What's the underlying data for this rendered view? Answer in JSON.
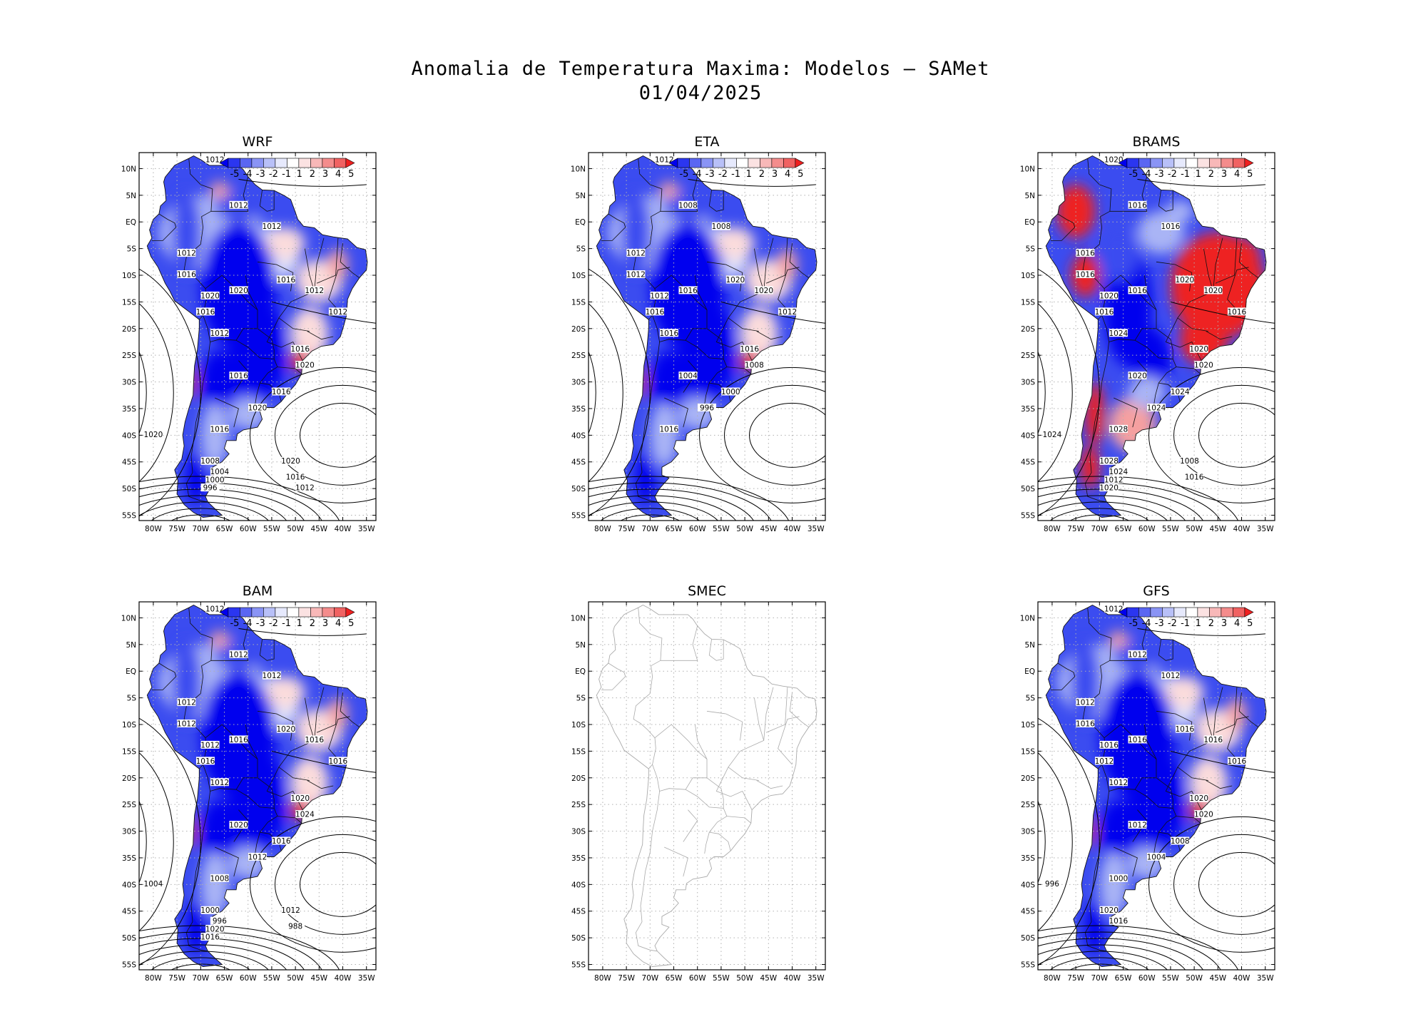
{
  "title": {
    "line1": "Anomalia de Temperatura Maxima: Modelos – SAMet",
    "line2": "01/04/2025"
  },
  "colors": {
    "strong_blue": "#0000ee",
    "blue": "#3b4cf0",
    "light_blue": "#a9b4f5",
    "pale_blue": "#dde2fb",
    "pale_red": "#fbdcdc",
    "light_red": "#f5a0a0",
    "red": "#ee2020",
    "grid": "#b0b0b0",
    "land_empty": "#f4f4f4"
  },
  "chart_data": {
    "type": "heatmap",
    "variable": "Anomalia de Temperatura Maxima",
    "date": "01/04/2025",
    "x_ticks": [
      "80W",
      "75W",
      "70W",
      "65W",
      "60W",
      "55W",
      "50W",
      "45W",
      "40W",
      "35W"
    ],
    "y_ticks": [
      "10N",
      "5N",
      "EQ",
      "5S",
      "10S",
      "15S",
      "20S",
      "25S",
      "30S",
      "35S",
      "40S",
      "45S",
      "50S",
      "55S"
    ],
    "xlim": [
      -83,
      -33
    ],
    "ylim": [
      -56,
      13
    ],
    "colorbar": {
      "labels": [
        "-5",
        "-4",
        "-3",
        "-2",
        "-1",
        "1",
        "2",
        "3",
        "4",
        "5"
      ],
      "colors": [
        "#0000ee",
        "#2b36f0",
        "#5a66f2",
        "#8a94f5",
        "#b8c0f8",
        "#e6e9fc",
        "#ffffff",
        "#fbe2e2",
        "#f8b8b8",
        "#f48c8c",
        "#f06262",
        "#ee2020"
      ]
    },
    "panels": [
      {
        "name": "WRF",
        "has_data": true,
        "tone": "cold",
        "contour_labels": [
          "1012",
          "1012",
          "1012",
          "1012",
          "1016",
          "1020",
          "1020",
          "1016",
          "1012",
          "1016",
          "1012",
          "1012",
          "1016",
          "1020",
          "1016",
          "1016",
          "1020",
          "1016",
          "1020",
          "1008",
          "1004",
          "1000",
          "996",
          "1020",
          "1016",
          "1012"
        ]
      },
      {
        "name": "ETA",
        "has_data": true,
        "tone": "cold",
        "contour_labels": [
          "1012",
          "1008",
          "1008",
          "1012",
          "1012",
          "1012",
          "1016",
          "1016",
          "1016",
          "1020",
          "1020",
          "1012",
          "1016",
          "1008",
          "1004",
          "1000",
          "996",
          "1016"
        ]
      },
      {
        "name": "BRAMS",
        "has_data": true,
        "tone": "warm",
        "contour_labels": [
          "1020",
          "1016",
          "1016",
          "1016",
          "1016",
          "1020",
          "1016",
          "1016",
          "1024",
          "1020",
          "1020",
          "1016",
          "1020",
          "1020",
          "1020",
          "1024",
          "1024",
          "1028",
          "1024",
          "1028",
          "1024",
          "1012",
          "1020",
          "1008",
          "1016"
        ]
      },
      {
        "name": "BAM",
        "has_data": true,
        "tone": "cold",
        "contour_labels": [
          "1012",
          "1012",
          "1012",
          "1012",
          "1012",
          "1012",
          "1016",
          "1016",
          "1012",
          "1020",
          "1016",
          "1016",
          "1020",
          "1024",
          "1020",
          "1016",
          "1012",
          "1008",
          "1004",
          "1000",
          "996",
          "1020",
          "1016",
          "1012",
          "988"
        ]
      },
      {
        "name": "SMEC",
        "has_data": false,
        "tone": "none",
        "contour_labels": []
      },
      {
        "name": "GFS",
        "has_data": true,
        "tone": "cold",
        "contour_labels": [
          "1012",
          "1012",
          "1012",
          "1012",
          "1016",
          "1016",
          "1016",
          "1012",
          "1012",
          "1016",
          "1016",
          "1016",
          "1020",
          "1020",
          "1012",
          "1008",
          "1004",
          "1000",
          "996",
          "1020",
          "1016"
        ]
      }
    ]
  }
}
